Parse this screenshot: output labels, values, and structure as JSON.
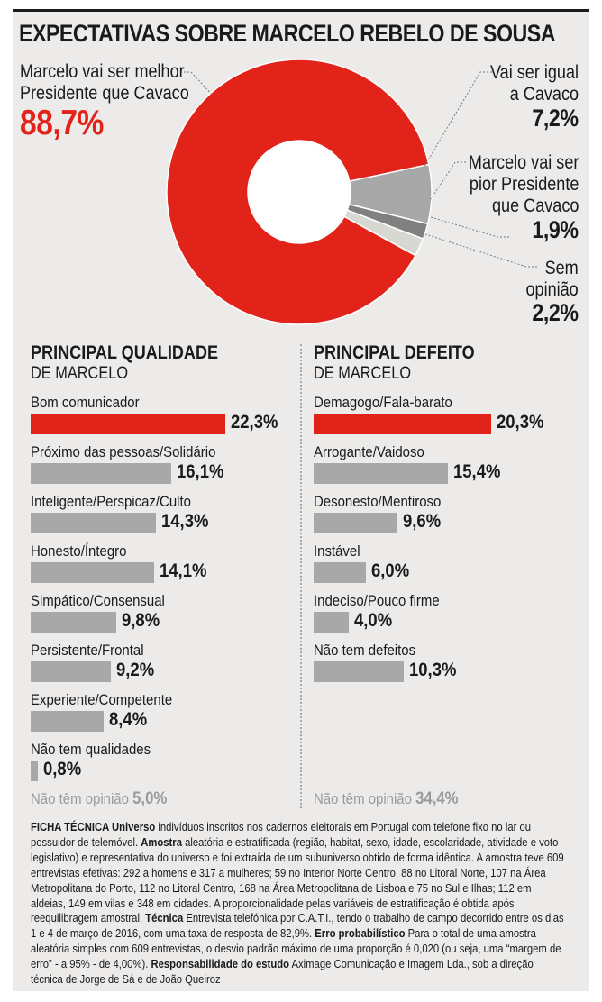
{
  "title": "EXPECTATIVAS SOBRE MARCELO REBELO DE SOUSA",
  "colors": {
    "accent": "#e2231a",
    "gray": "#a8a8a8",
    "dark_gray": "#808080",
    "light_gray": "#d8d8d2",
    "card": "#ecebea"
  },
  "chart_data": [
    {
      "type": "pie",
      "title": "EXPECTATIVAS SOBRE MARCELO REBELO DE SOUSA",
      "slices": [
        {
          "label_lines": [
            "Marcelo vai ser melhor",
            "Presidente que Cavaco"
          ],
          "value": 88.7,
          "value_text": "88,7%",
          "color": "#e2231a"
        },
        {
          "label_lines": [
            "Vai ser igual",
            "a Cavaco"
          ],
          "value": 7.2,
          "value_text": "7,2%",
          "color": "#a8a8a8"
        },
        {
          "label_lines": [
            "Marcelo vai ser",
            "pior Presidente",
            "que Cavaco"
          ],
          "value": 1.9,
          "value_text": "1,9%",
          "color": "#808080"
        },
        {
          "label_lines": [
            "Sem",
            "opinião"
          ],
          "value": 2.2,
          "value_text": "2,2%",
          "color": "#d8d8d2"
        }
      ]
    },
    {
      "type": "bar",
      "title": "PRINCIPAL QUALIDADE",
      "subtitle": "DE MARCELO",
      "categories": [
        "Bom comunicador",
        "Próximo das pessoas/Solidário",
        "Inteligente/Perspicaz/Culto",
        "Honesto/Íntegro",
        "Simpático/Consensual",
        "Persistente/Frontal",
        "Experiente/Competente",
        "Não tem qualidades"
      ],
      "values": [
        22.3,
        16.1,
        14.3,
        14.1,
        9.8,
        9.2,
        8.4,
        0.8
      ],
      "value_texts": [
        "22,3%",
        "16,1%",
        "14,3%",
        "14,1%",
        "9,8%",
        "9,2%",
        "8,4%",
        "0,8%"
      ],
      "no_opinion_label": "Não têm opinião",
      "no_opinion_value": "5,0%"
    },
    {
      "type": "bar",
      "title": "PRINCIPAL DEFEITO",
      "subtitle": "DE MARCELO",
      "categories": [
        "Demagogo/Fala-barato",
        "Arrogante/Vaidoso",
        "Desonesto/Mentiroso",
        "Instável",
        "Indeciso/Pouco firme",
        "Não tem defeitos"
      ],
      "values": [
        20.3,
        15.4,
        9.6,
        6.0,
        4.0,
        10.3
      ],
      "value_texts": [
        "20,3%",
        "15,4%",
        "9,6%",
        "6,0%",
        "4,0%",
        "10,3%"
      ],
      "no_opinion_label": "Não têm opinião",
      "no_opinion_value": "34,4%"
    }
  ],
  "tech": [
    {
      "b": "FICHA TÉCNICA Universo",
      "t": " indivíduos inscritos nos cadernos eleitorais em Portugal com telefone fixo no lar ou possuidor de telemóvel. "
    },
    {
      "b": "Amostra",
      "t": " aleatória e estratificada (região, habitat, sexo, idade, escolaridade, atividade e voto legislativo) e representativa do universo e foi extraída de um subuniverso obtido de forma idêntica. A amostra teve 609 entrevistas efetivas: 292 a homens e 317 a mulheres; 59 no Interior Norte Centro, 88 no Litoral Norte, 107 na Área Metropolitana do Porto, 112 no Litoral Centro, 168 na Área Metropolitana de Lisboa e 75 no Sul e Ilhas; 112 em aldeias, 149 em vilas e 348 em cidades. A proporcionalidade pelas variáveis de estratificação é obtida após reequilibragem amostral. "
    },
    {
      "b": "Técnica",
      "t": " Entrevista telefónica por C.A.T.I., tendo o trabalho de campo decorrido entre os dias 1 e 4 de março de 2016, com uma taxa de resposta de 82,9%. "
    },
    {
      "b": "Erro probabilístico",
      "t": " Para o total de uma amostra aleatória simples com 609 entrevistas, o desvio padrão máximo de uma proporção é 0,020 (ou seja, uma “margem de erro” - a 95% - de 4,00%). "
    },
    {
      "b": "Responsabilidade do estudo",
      "t": " Aximage Comunicação e Imagem Lda., sob a direção técnica de Jorge de Sá e de João Queiroz"
    }
  ]
}
